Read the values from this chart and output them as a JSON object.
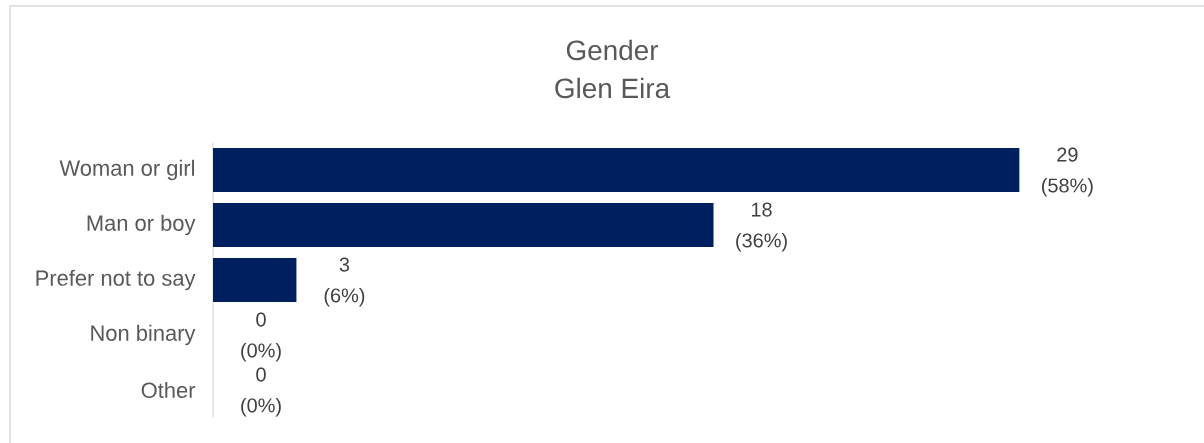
{
  "chart_data": {
    "type": "bar",
    "orientation": "horizontal",
    "title": "Gender",
    "subtitle": "Glen Eira",
    "categories": [
      "Woman or girl",
      "Man or boy",
      "Prefer not to say",
      "Non binary",
      "Other"
    ],
    "values": [
      29,
      18,
      3,
      0,
      0
    ],
    "color": "#001f5f",
    "value_labels": [
      "29 (58%)",
      "18 (36%)",
      "3 (6%)",
      "0 (0%)",
      "0 (0%)"
    ]
  }
}
